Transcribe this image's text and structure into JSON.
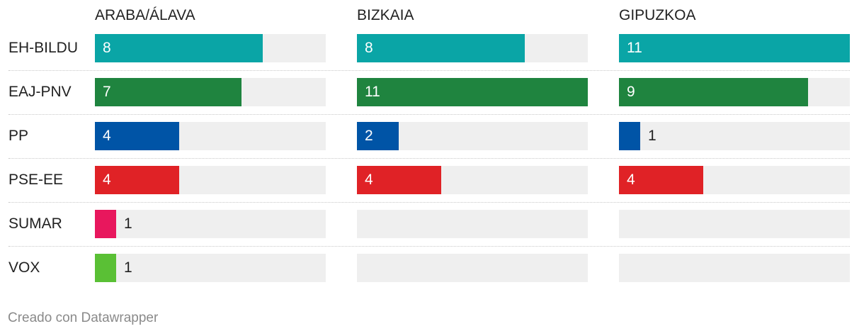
{
  "chart_data": {
    "type": "bar",
    "regions": [
      "ARABA/ÁLAVA",
      "BIZKAIA",
      "GIPUZKOA"
    ],
    "scale_max": 11,
    "rows": [
      {
        "party": "EH-BILDU",
        "color": "#0aa5a6",
        "values": [
          8,
          8,
          11
        ]
      },
      {
        "party": "EAJ-PNV",
        "color": "#1f843f",
        "values": [
          7,
          11,
          9
        ]
      },
      {
        "party": "PP",
        "color": "#0054a6",
        "values": [
          4,
          2,
          1
        ]
      },
      {
        "party": "PSE-EE",
        "color": "#e02226",
        "values": [
          4,
          4,
          4
        ]
      },
      {
        "party": "SUMAR",
        "color": "#e8175d",
        "values": [
          1,
          null,
          null
        ]
      },
      {
        "party": "VOX",
        "color": "#5ac035",
        "values": [
          1,
          null,
          null
        ]
      }
    ]
  },
  "footer": {
    "credit": "Creado con Datawrapper"
  }
}
